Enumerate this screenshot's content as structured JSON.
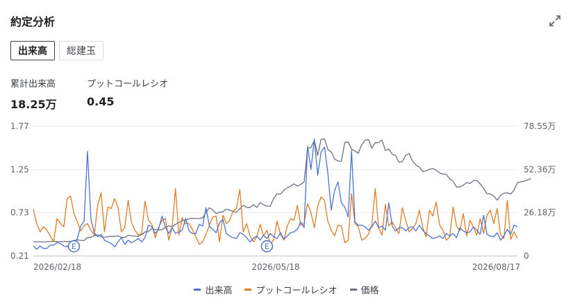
{
  "header": {
    "title": "約定分析"
  },
  "tabs": [
    {
      "label": "出来高",
      "active": true
    },
    {
      "label": "総建玉",
      "active": false
    }
  ],
  "stats": [
    {
      "label": "累計出来高",
      "value": "18.25万"
    },
    {
      "label": "プットコールレシオ",
      "value": "0.45"
    }
  ],
  "chart_data": {
    "type": "line",
    "x_labels": [
      "2026/02/18",
      "2026/05/18",
      "2026/08/17"
    ],
    "left_axis": {
      "ticks": [
        "1.77",
        "1.25",
        "0.73",
        "0.21"
      ],
      "ylim": [
        0.21,
        1.77
      ]
    },
    "right_axis": {
      "ticks": [
        "78.55万",
        "52.36万",
        "26.18万",
        "0"
      ],
      "ylim": [
        0,
        78.55
      ]
    },
    "event_markers": [
      {
        "label": "E",
        "index": 12
      },
      {
        "label": "E",
        "index": 69
      }
    ],
    "series": [
      {
        "name": "出来高",
        "axis": "left",
        "color": "#4a72d1",
        "values": [
          0.33,
          0.29,
          0.33,
          0.3,
          0.3,
          0.34,
          0.34,
          0.37,
          0.36,
          0.33,
          0.32,
          0.37,
          0.36,
          0.42,
          0.57,
          0.63,
          1.47,
          0.65,
          0.49,
          0.44,
          0.47,
          0.4,
          0.38,
          0.36,
          0.32,
          0.38,
          0.43,
          0.35,
          0.4,
          0.37,
          0.39,
          0.42,
          0.38,
          0.43,
          0.58,
          0.56,
          0.48,
          0.53,
          0.69,
          0.56,
          0.48,
          0.55,
          0.48,
          0.5,
          0.52,
          0.66,
          0.51,
          0.48,
          0.48,
          0.59,
          0.57,
          0.79,
          0.57,
          0.53,
          0.49,
          0.61,
          0.65,
          0.48,
          0.45,
          0.43,
          0.42,
          0.49,
          0.47,
          0.43,
          0.38,
          0.42,
          0.45,
          0.4,
          0.46,
          0.42,
          0.48,
          0.44,
          0.42,
          0.49,
          0.41,
          0.45,
          0.49,
          0.5,
          0.53,
          0.62,
          0.55,
          1.53,
          1.25,
          1.62,
          1.18,
          1.46,
          1.52,
          1.21,
          0.76,
          1.0,
          1.1,
          0.85,
          0.8,
          0.68,
          1.48,
          0.62,
          0.58,
          0.58,
          0.56,
          0.52,
          0.56,
          0.63,
          0.55,
          0.57,
          0.52,
          0.85,
          0.57,
          0.51,
          0.55,
          0.55,
          0.51,
          0.55,
          0.56,
          0.51,
          0.58,
          0.52,
          0.48,
          0.45,
          0.42,
          0.43,
          0.45,
          0.42,
          0.48,
          0.45,
          0.48,
          0.43,
          0.55,
          0.51,
          0.49,
          0.5,
          0.56,
          0.52,
          0.47,
          0.7,
          0.47,
          0.45,
          0.44,
          0.49,
          0.4,
          0.45,
          0.53,
          0.47,
          0.58,
          0.56
        ]
      },
      {
        "name": "プットコールレシオ",
        "axis": "left",
        "color": "#e07b25",
        "values": [
          0.77,
          0.6,
          0.5,
          0.56,
          0.52,
          0.45,
          0.38,
          0.66,
          0.6,
          0.56,
          0.9,
          0.93,
          0.72,
          0.62,
          0.51,
          0.57,
          0.6,
          0.52,
          0.46,
          0.82,
          0.97,
          0.5,
          0.8,
          0.78,
          0.9,
          0.8,
          0.5,
          0.55,
          0.88,
          0.61,
          0.52,
          0.46,
          0.48,
          0.87,
          0.64,
          0.59,
          0.43,
          0.55,
          0.64,
          0.66,
          0.4,
          0.55,
          1.02,
          0.46,
          0.67,
          0.6,
          0.6,
          0.53,
          0.44,
          0.35,
          0.38,
          0.47,
          0.58,
          0.68,
          0.69,
          0.38,
          0.7,
          0.6,
          0.64,
          0.75,
          0.78,
          1.01,
          0.5,
          0.6,
          0.45,
          0.38,
          0.44,
          0.59,
          0.45,
          0.52,
          0.36,
          0.4,
          0.63,
          0.47,
          0.4,
          0.57,
          0.66,
          0.64,
          0.82,
          0.58,
          0.6,
          0.84,
          0.73,
          0.55,
          0.81,
          0.92,
          0.88,
          0.63,
          0.52,
          0.45,
          0.58,
          0.57,
          0.37,
          0.4,
          0.96,
          0.6,
          0.56,
          0.4,
          0.42,
          0.47,
          0.59,
          1.02,
          0.54,
          0.46,
          0.83,
          0.57,
          0.62,
          0.55,
          0.48,
          0.79,
          0.64,
          0.5,
          0.54,
          0.6,
          0.76,
          0.56,
          0.44,
          0.76,
          0.69,
          0.86,
          0.58,
          0.52,
          0.4,
          0.44,
          0.8,
          0.57,
          0.51,
          0.72,
          0.45,
          0.64,
          0.56,
          0.46,
          0.66,
          0.48,
          0.7,
          0.76,
          0.6,
          0.78,
          0.47,
          0.42,
          0.88,
          0.41,
          0.5,
          0.42
        ]
      },
      {
        "name": "価格",
        "axis": "right",
        "color": "#6b6f80",
        "values": [
          8.6,
          8.6,
          8.6,
          8.4,
          8.6,
          8.7,
          8.9,
          8.7,
          8.6,
          8.7,
          8.7,
          8.7,
          9.4,
          9.7,
          9.5,
          9.4,
          11.2,
          11.2,
          12.3,
          12.8,
          11.6,
          11.3,
          11.7,
          11.9,
          11.9,
          12.2,
          11.2,
          11.1,
          12.6,
          12.2,
          12.0,
          11.8,
          13.0,
          14.6,
          14.8,
          16.6,
          16.0,
          15.7,
          15.9,
          17.3,
          18.3,
          17.6,
          19.2,
          20.4,
          21.5,
          21.8,
          22.6,
          22.9,
          22.7,
          22.7,
          23.0,
          26.5,
          29.2,
          27.8,
          25.7,
          26.5,
          26.8,
          28.3,
          27.8,
          26.9,
          26.5,
          28.6,
          30.7,
          29.5,
          29.3,
          31.1,
          29.4,
          32.3,
          31.0,
          30.2,
          30.2,
          35.0,
          37.6,
          37.4,
          39.8,
          41.2,
          42.3,
          43.7,
          42.3,
          43.4,
          44.8,
          65.2,
          65.7,
          70.0,
          60.9,
          70.7,
          70.9,
          64.6,
          63.0,
          58.7,
          57.5,
          57.3,
          68.8,
          69.0,
          64.6,
          63.6,
          62.2,
          67.3,
          70.1,
          70.5,
          65.3,
          68.6,
          68.6,
          70.2,
          63.9,
          64.7,
          61.6,
          60.9,
          56.8,
          57.1,
          61.0,
          62.0,
          57.5,
          55.1,
          53.9,
          51.1,
          51.5,
          52.5,
          52.9,
          52.0,
          50.3,
          49.6,
          49.4,
          46.7,
          45.2,
          41.7,
          41.8,
          42.9,
          44.5,
          43.9,
          45.6,
          45.8,
          43.6,
          40.9,
          37.8,
          37.5,
          36.3,
          33.8,
          36.6,
          38.0,
          38.2,
          37.5,
          39.9,
          44.4,
          44.9,
          45.3,
          46.1,
          46.8
        ]
      }
    ],
    "legend_position": "bottom",
    "grid": true
  }
}
